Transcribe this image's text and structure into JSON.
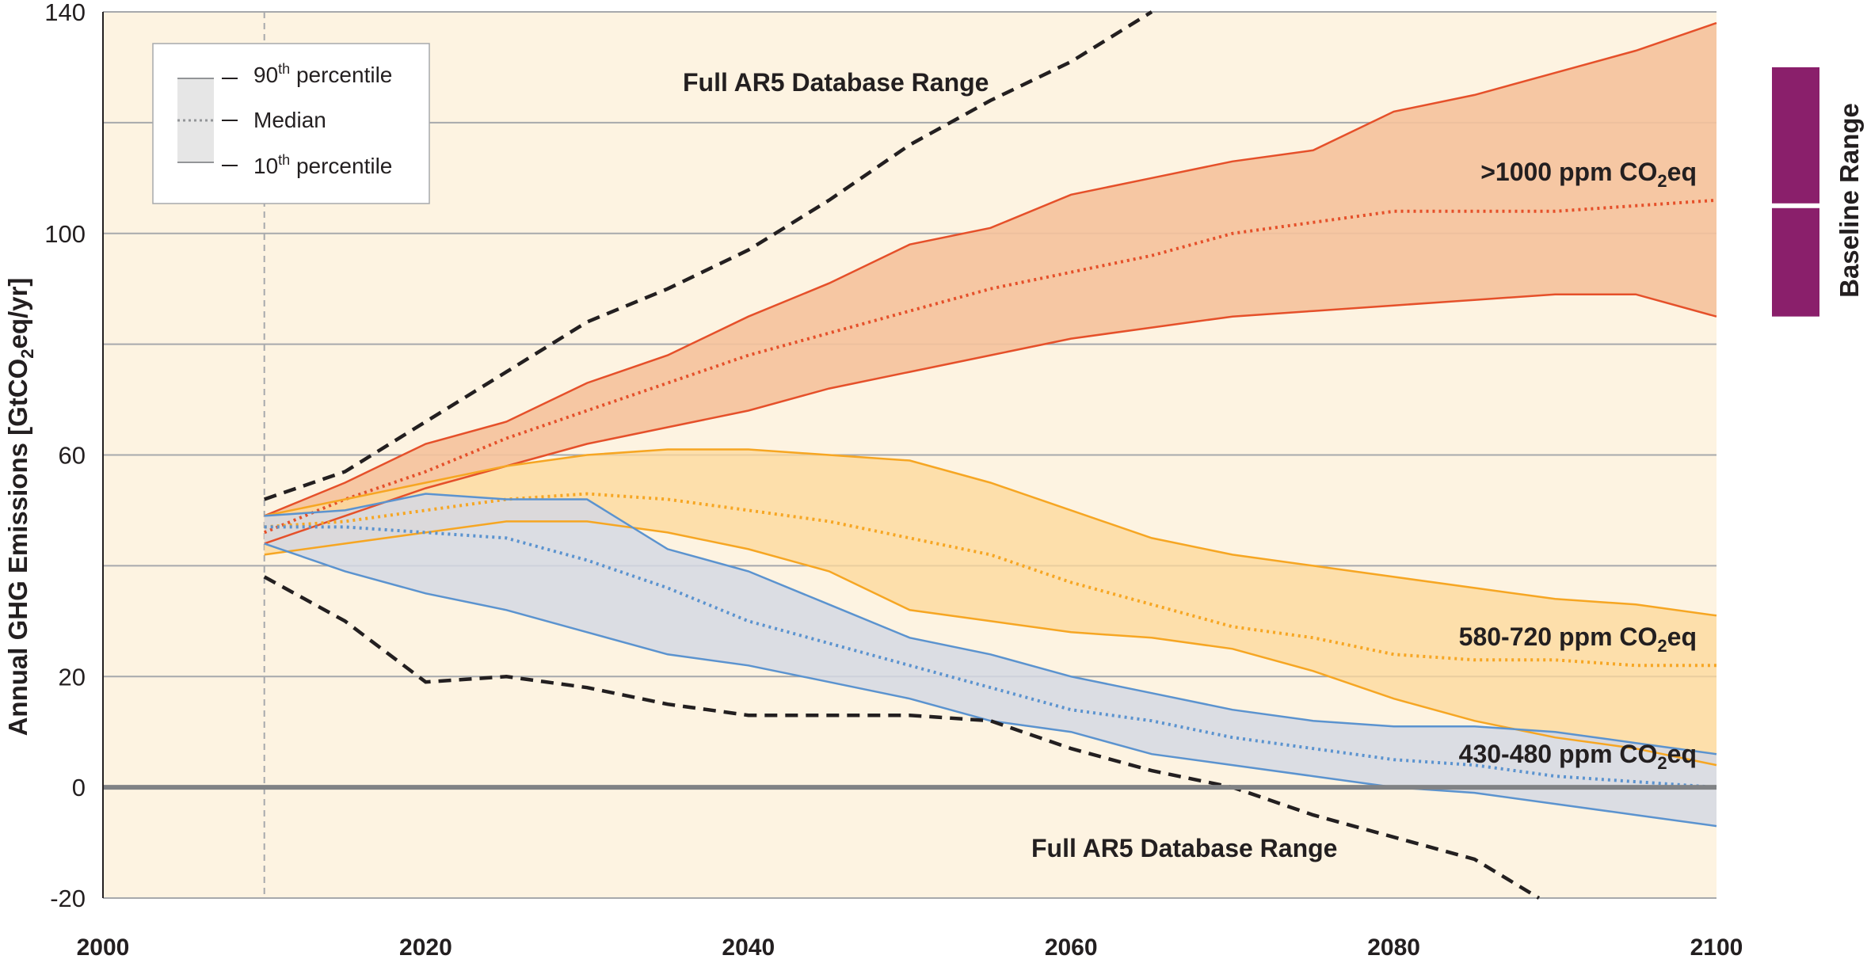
{
  "chart_data": {
    "type": "area",
    "title": "",
    "ylabel": "Annual GHG Emissions [GtCO2eq/yr]",
    "ylabel_main": "Annual GHG Emissions [GtCO",
    "ylabel_sub": "2",
    "ylabel_tail": "eq/yr]",
    "xlim": [
      2000,
      2100
    ],
    "ylim": [
      -20,
      140
    ],
    "x_ticks": [
      "2000",
      "2020",
      "2040",
      "2060",
      "2080",
      "2100"
    ],
    "y_ticks": [
      "-20",
      "0",
      "20",
      "60",
      "100",
      "140"
    ],
    "gridlines_y": [
      -20,
      0,
      20,
      40,
      60,
      80,
      100,
      120,
      140
    ],
    "grid": true,
    "vertical_reference_year": 2010,
    "colors": {
      "background": "#fdf3e1",
      "grid": "#a7a9ac",
      "high_fill": "#f5c29c",
      "high_line": "#e5502a",
      "mid_fill": "#fcd89b",
      "mid_line": "#f6a623",
      "low_fill": "#d5d8e3",
      "low_line": "#5b93cf",
      "range_line": "#231f20",
      "baseline_bar": "#8a1f6b"
    },
    "legend": {
      "p90_pre": "90",
      "p90_sup": "th",
      "p90_post": " percentile",
      "median": "Median",
      "p10_pre": "10",
      "p10_sup": "th",
      "p10_post": " percentile"
    },
    "annotations": {
      "full_range_top": "Full AR5 Database Range",
      "full_range_bottom": "Full AR5 Database Range",
      "baseline_range": "Baseline Range",
      "high_pre": ">1000 ppm CO",
      "mid_pre": "580-720 ppm CO",
      "low_pre": "430-480 ppm CO",
      "sub2": "2",
      "eq": "eq"
    },
    "baseline_range": {
      "ymin": 85,
      "ymax": 130,
      "gap_at": 105
    },
    "series": [
      {
        "name": ">1000 ppm CO2eq",
        "x": [
          2010,
          2015,
          2020,
          2025,
          2030,
          2035,
          2040,
          2045,
          2050,
          2055,
          2060,
          2065,
          2070,
          2075,
          2080,
          2085,
          2090,
          2095,
          2100
        ],
        "p90": [
          49,
          55,
          62,
          66,
          73,
          78,
          85,
          91,
          98,
          101,
          107,
          110,
          113,
          115,
          122,
          125,
          129,
          133,
          138
        ],
        "median": [
          46,
          52,
          57,
          63,
          68,
          73,
          78,
          82,
          86,
          90,
          93,
          96,
          100,
          102,
          104,
          104,
          104,
          105,
          106
        ],
        "p10": [
          44,
          49,
          54,
          58,
          62,
          65,
          68,
          72,
          75,
          78,
          81,
          83,
          85,
          86,
          87,
          88,
          89,
          89,
          85
        ]
      },
      {
        "name": "580-720 ppm CO2eq",
        "x": [
          2010,
          2015,
          2020,
          2025,
          2030,
          2035,
          2040,
          2045,
          2050,
          2055,
          2060,
          2065,
          2070,
          2075,
          2080,
          2085,
          2090,
          2095,
          2100
        ],
        "p90": [
          49,
          52,
          55,
          58,
          60,
          61,
          61,
          60,
          59,
          55,
          50,
          45,
          42,
          40,
          38,
          36,
          34,
          33,
          31
        ],
        "median": [
          47,
          48,
          50,
          52,
          53,
          52,
          50,
          48,
          45,
          42,
          37,
          33,
          29,
          27,
          24,
          23,
          23,
          22,
          22
        ],
        "p10": [
          42,
          44,
          46,
          48,
          48,
          46,
          43,
          39,
          32,
          30,
          28,
          27,
          25,
          21,
          16,
          12,
          9,
          7,
          4
        ]
      },
      {
        "name": "430-480 ppm CO2eq",
        "x": [
          2010,
          2015,
          2020,
          2025,
          2030,
          2035,
          2040,
          2045,
          2050,
          2055,
          2060,
          2065,
          2070,
          2075,
          2080,
          2085,
          2090,
          2095,
          2100
        ],
        "p90": [
          49,
          50,
          53,
          52,
          52,
          43,
          39,
          33,
          27,
          24,
          20,
          17,
          14,
          12,
          11,
          11,
          10,
          8,
          6
        ],
        "median": [
          47,
          47,
          46,
          45,
          41,
          36,
          30,
          26,
          22,
          18,
          14,
          12,
          9,
          7,
          5,
          4,
          2,
          1,
          0
        ],
        "p10": [
          44,
          39,
          35,
          32,
          28,
          24,
          22,
          19,
          16,
          12,
          10,
          6,
          4,
          2,
          0,
          -1,
          -3,
          -5,
          -7
        ]
      },
      {
        "name": "Full AR5 Database Range (upper)",
        "x": [
          2010,
          2015,
          2020,
          2025,
          2030,
          2035,
          2040,
          2045,
          2050,
          2055,
          2060,
          2065
        ],
        "values": [
          52,
          57,
          66,
          75,
          84,
          90,
          97,
          106,
          116,
          124,
          131,
          140
        ]
      },
      {
        "name": "Full AR5 Database Range (lower)",
        "x": [
          2010,
          2015,
          2020,
          2025,
          2030,
          2035,
          2040,
          2045,
          2050,
          2055,
          2060,
          2065,
          2070,
          2075,
          2080,
          2085,
          2089
        ],
        "values": [
          38,
          30,
          19,
          20,
          18,
          15,
          13,
          13,
          13,
          12,
          7,
          3,
          0,
          -5,
          -9,
          -13,
          -20
        ]
      }
    ]
  }
}
